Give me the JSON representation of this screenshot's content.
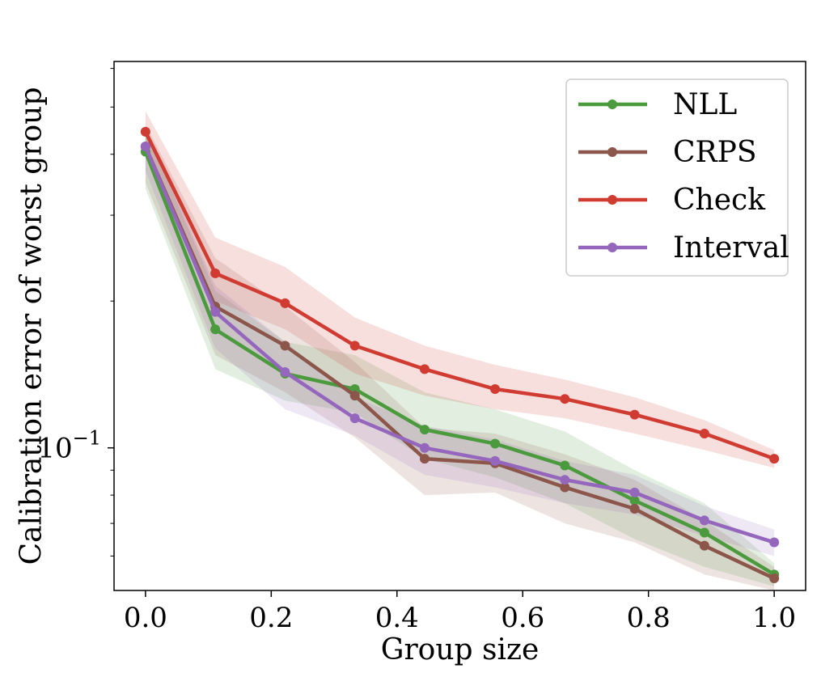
{
  "chart_data": {
    "type": "line",
    "title": "",
    "xlabel": "Group size",
    "ylabel": "Calibration error of worst group",
    "x": [
      0.0,
      0.111,
      0.222,
      0.333,
      0.444,
      0.556,
      0.667,
      0.778,
      0.889,
      1.0
    ],
    "xlim": [
      -0.05,
      1.05
    ],
    "ylim": [
      0.051,
      0.62
    ],
    "yscale": "log",
    "xticks": [
      "0.0",
      "0.2",
      "0.4",
      "0.6",
      "0.8",
      "1.0"
    ],
    "yticks": [
      {
        "value": 0.1,
        "label": "10",
        "exponent": "−1"
      }
    ],
    "legend_position": "top-right",
    "grid": false,
    "series": [
      {
        "name": "NLL",
        "color": "#4c9a3e",
        "values": [
          0.405,
          0.175,
          0.142,
          0.132,
          0.109,
          0.102,
          0.092,
          0.078,
          0.067,
          0.055
        ],
        "lower": [
          0.34,
          0.145,
          0.125,
          0.118,
          0.095,
          0.087,
          0.077,
          0.065,
          0.057,
          0.052
        ],
        "upper": [
          0.45,
          0.21,
          0.165,
          0.155,
          0.13,
          0.12,
          0.108,
          0.09,
          0.077,
          0.058
        ]
      },
      {
        "name": "CRPS",
        "color": "#8c564b",
        "values": [
          0.415,
          0.195,
          0.162,
          0.128,
          0.095,
          0.093,
          0.083,
          0.075,
          0.063,
          0.054
        ],
        "lower": [
          0.35,
          0.155,
          0.13,
          0.105,
          0.08,
          0.081,
          0.07,
          0.064,
          0.055,
          0.051
        ],
        "upper": [
          0.46,
          0.245,
          0.195,
          0.15,
          0.11,
          0.107,
          0.097,
          0.086,
          0.071,
          0.057
        ]
      },
      {
        "name": "Check",
        "color": "#d03b32",
        "values": [
          0.445,
          0.228,
          0.198,
          0.162,
          0.145,
          0.132,
          0.126,
          0.117,
          0.107,
          0.095
        ],
        "lower": [
          0.395,
          0.2,
          0.175,
          0.142,
          0.128,
          0.12,
          0.115,
          0.107,
          0.099,
          0.091
        ],
        "upper": [
          0.49,
          0.27,
          0.235,
          0.185,
          0.162,
          0.148,
          0.138,
          0.127,
          0.114,
          0.099
        ]
      },
      {
        "name": "Interval",
        "color": "#9467bd",
        "values": [
          0.415,
          0.19,
          0.143,
          0.115,
          0.1,
          0.094,
          0.086,
          0.081,
          0.071,
          0.064
        ],
        "lower": [
          0.37,
          0.16,
          0.12,
          0.106,
          0.088,
          0.083,
          0.077,
          0.073,
          0.066,
          0.06
        ],
        "upper": [
          0.455,
          0.215,
          0.165,
          0.127,
          0.111,
          0.104,
          0.094,
          0.088,
          0.076,
          0.068
        ]
      }
    ]
  }
}
